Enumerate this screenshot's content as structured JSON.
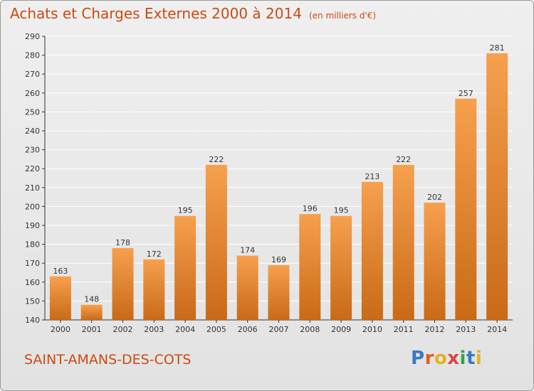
{
  "header": {
    "title": "Achats et Charges Externes 2000 à 2014",
    "unit": "(en milliers d'€)"
  },
  "footer": {
    "city": "SAINT-AMANS-DES-COTS",
    "brand": "Proxiti",
    "brand_colors": [
      "#3a78c3",
      "#e55c1a",
      "#e8b020",
      "#e04040",
      "#2ea64a",
      "#3a78c3",
      "#e8b020"
    ]
  },
  "colors": {
    "bar_light": "#f6a04e",
    "bar_dark": "#c96a17",
    "title": "#cc4a12",
    "grid": "#ffffff",
    "axis": "#333333"
  },
  "chart_data": {
    "type": "bar",
    "categories": [
      "2000",
      "2001",
      "2002",
      "2003",
      "2004",
      "2005",
      "2006",
      "2007",
      "2008",
      "2009",
      "2010",
      "2011",
      "2012",
      "2013",
      "2014"
    ],
    "values": [
      163,
      148,
      178,
      172,
      195,
      222,
      174,
      169,
      196,
      195,
      213,
      222,
      202,
      257,
      281
    ],
    "title": "Achats et Charges Externes 2000 à 2014",
    "ylim": [
      140,
      290
    ],
    "yticks": [
      140,
      150,
      160,
      170,
      180,
      190,
      200,
      210,
      220,
      230,
      240,
      250,
      260,
      270,
      280,
      290
    ],
    "grid": true,
    "data_labels": true
  }
}
